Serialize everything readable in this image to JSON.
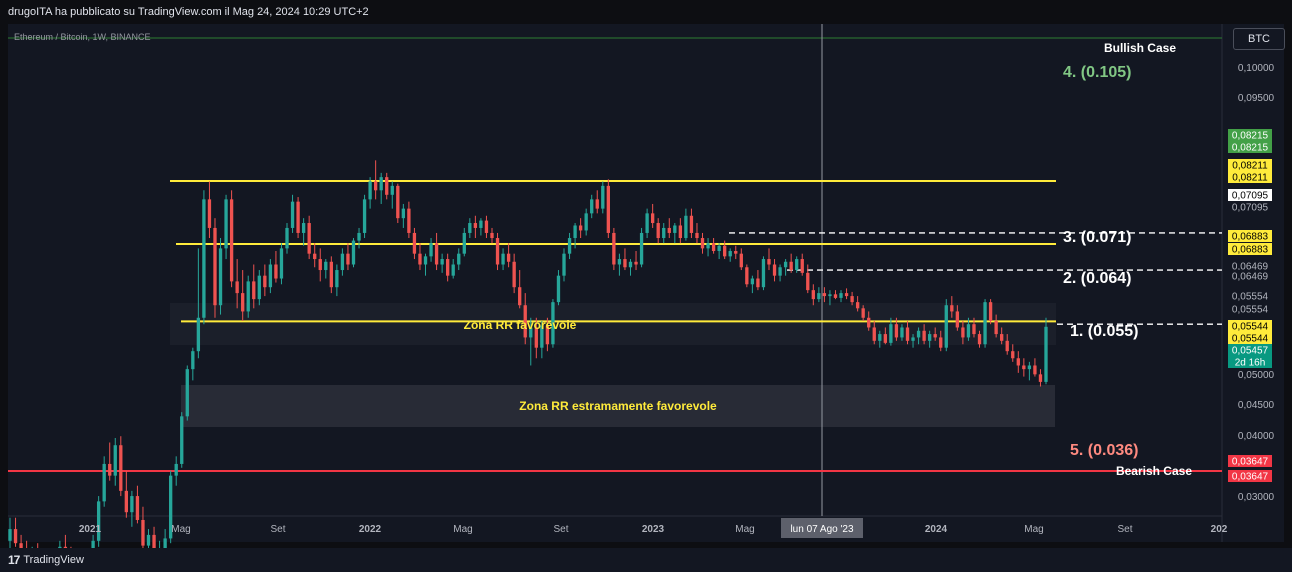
{
  "header": {
    "publisher_text": "drugoITA ha pubblicato su TradingView.com il Mag 24, 2024 10:29 UTC+2"
  },
  "footer": {
    "logo_mark": "17",
    "logo_text": "TradingView"
  },
  "toolbar": {
    "currency_button": "BTC"
  },
  "colors": {
    "background": "#131722",
    "up": "#26a69a",
    "down": "#ef5350",
    "yellow": "#ffeb3b",
    "red_line": "#f23645",
    "green_text": "#81c784",
    "salmon_text": "#ff8a80"
  },
  "chart_data": {
    "type": "candlestick",
    "symbol_label": "Ethereum / Bitcoin, 1W, BINANCE",
    "y_ticks": [
      "0,10000",
      "0,09500",
      "0,05000",
      "0,04500",
      "0,04000",
      "0,03000"
    ],
    "x_ticks": [
      {
        "label": "2021",
        "bold": true
      },
      {
        "label": "Mag",
        "bold": false
      },
      {
        "label": "Set",
        "bold": false
      },
      {
        "label": "2022",
        "bold": true
      },
      {
        "label": "Mag",
        "bold": false
      },
      {
        "label": "Set",
        "bold": false
      },
      {
        "label": "2023",
        "bold": true
      },
      {
        "label": "Mag",
        "bold": false
      },
      {
        "label": "2024",
        "bold": true
      },
      {
        "label": "Mag",
        "bold": false
      },
      {
        "label": "Set",
        "bold": false
      },
      {
        "label": "202",
        "bold": true
      }
    ],
    "crosshair_date": "lun 07 Ago '23",
    "price_labels": [
      {
        "text": "0,08215",
        "style": "green"
      },
      {
        "text": "0,08215",
        "style": "green"
      },
      {
        "text": "0,08211",
        "style": "yellow"
      },
      {
        "text": "0,08211",
        "style": "yellow"
      },
      {
        "text": "0,07095",
        "style": "white"
      },
      {
        "text": "0,07095",
        "style": "dark"
      },
      {
        "text": "0,06883",
        "style": "yellow"
      },
      {
        "text": "0,06883",
        "style": "yellow"
      },
      {
        "text": "0,06469",
        "style": "dark"
      },
      {
        "text": "0,06469",
        "style": "dark"
      },
      {
        "text": "0,05554",
        "style": "dark"
      },
      {
        "text": "0,05554",
        "style": "dark"
      },
      {
        "text": "0,05544",
        "style": "yellow"
      },
      {
        "text": "0,05544",
        "style": "yellow"
      },
      {
        "text": "0,05457",
        "style": "teal"
      },
      {
        "text": "2d 16h",
        "style": "teal"
      },
      {
        "text": "0,03647",
        "style": "red"
      },
      {
        "text": "0,03647",
        "style": "red"
      }
    ],
    "annotations": {
      "bullish_case": "Bullish Case",
      "bearish_case": "Bearish Case",
      "target_4": "4. (0.105)",
      "target_3": "3. (0.071)",
      "target_2": "2. (0.064)",
      "target_1": "1. (0.055)",
      "target_5": "5. (0.036)",
      "zone_favorable": "Zona RR favorevole",
      "zone_very_favorable": "Zona RR estramamente favorevole"
    },
    "levels": [
      0.08211,
      0.06883,
      0.05544,
      0.03647
    ],
    "targets": [
      0.071,
      0.064,
      0.055,
      0.105,
      0.036
    ],
    "candles": [
      [
        0.03,
        0.032,
        0.029,
        0.031
      ],
      [
        0.031,
        0.032,
        0.0295,
        0.0298
      ],
      [
        0.0298,
        0.0305,
        0.0288,
        0.0292
      ],
      [
        0.0292,
        0.03,
        0.0275,
        0.0278
      ],
      [
        0.0278,
        0.0295,
        0.027,
        0.029
      ],
      [
        0.029,
        0.0298,
        0.0272,
        0.0275
      ],
      [
        0.0275,
        0.029,
        0.0265,
        0.0286
      ],
      [
        0.0286,
        0.0294,
        0.027,
        0.0272
      ],
      [
        0.0272,
        0.029,
        0.0266,
        0.0288
      ],
      [
        0.0288,
        0.03,
        0.028,
        0.0295
      ],
      [
        0.0295,
        0.0305,
        0.0282,
        0.0284
      ],
      [
        0.0284,
        0.0295,
        0.0268,
        0.027
      ],
      [
        0.027,
        0.0282,
        0.0262,
        0.0276
      ],
      [
        0.0276,
        0.0284,
        0.0265,
        0.0268
      ],
      [
        0.0268,
        0.0285,
        0.0264,
        0.0282
      ],
      [
        0.0282,
        0.0305,
        0.0278,
        0.03
      ],
      [
        0.03,
        0.034,
        0.0295,
        0.0335
      ],
      [
        0.0335,
        0.038,
        0.033,
        0.0372
      ],
      [
        0.0372,
        0.0395,
        0.0355,
        0.036
      ],
      [
        0.036,
        0.04,
        0.035,
        0.0392
      ],
      [
        0.0392,
        0.0402,
        0.034,
        0.0345
      ],
      [
        0.0345,
        0.0365,
        0.032,
        0.0325
      ],
      [
        0.0325,
        0.0345,
        0.0312,
        0.034
      ],
      [
        0.034,
        0.035,
        0.0315,
        0.0318
      ],
      [
        0.0318,
        0.033,
        0.029,
        0.0296
      ],
      [
        0.0296,
        0.031,
        0.0285,
        0.0305
      ],
      [
        0.0305,
        0.0312,
        0.0288,
        0.029
      ],
      [
        0.029,
        0.03,
        0.028,
        0.0292
      ],
      [
        0.0292,
        0.031,
        0.0286,
        0.0302
      ],
      [
        0.0302,
        0.0365,
        0.0298,
        0.036
      ],
      [
        0.036,
        0.038,
        0.035,
        0.0372
      ],
      [
        0.0372,
        0.043,
        0.0368,
        0.0425
      ],
      [
        0.0425,
        0.049,
        0.042,
        0.0485
      ],
      [
        0.0485,
        0.0515,
        0.047,
        0.051
      ],
      [
        0.051,
        0.068,
        0.05,
        0.056
      ],
      [
        0.056,
        0.08,
        0.055,
        0.078
      ],
      [
        0.078,
        0.082,
        0.07,
        0.072
      ],
      [
        0.072,
        0.074,
        0.056,
        0.058
      ],
      [
        0.058,
        0.07,
        0.0565,
        0.068
      ],
      [
        0.068,
        0.079,
        0.066,
        0.078
      ],
      [
        0.078,
        0.08,
        0.061,
        0.062
      ],
      [
        0.062,
        0.066,
        0.0575,
        0.06
      ],
      [
        0.06,
        0.064,
        0.0555,
        0.057
      ],
      [
        0.057,
        0.063,
        0.056,
        0.062
      ],
      [
        0.062,
        0.065,
        0.0575,
        0.059
      ],
      [
        0.059,
        0.064,
        0.058,
        0.063
      ],
      [
        0.063,
        0.065,
        0.0595,
        0.061
      ],
      [
        0.061,
        0.066,
        0.06,
        0.065
      ],
      [
        0.065,
        0.0675,
        0.0618,
        0.0625
      ],
      [
        0.0625,
        0.069,
        0.0615,
        0.068
      ],
      [
        0.068,
        0.073,
        0.067,
        0.072
      ],
      [
        0.072,
        0.079,
        0.071,
        0.0775
      ],
      [
        0.0775,
        0.0785,
        0.07,
        0.071
      ],
      [
        0.071,
        0.074,
        0.0685,
        0.073
      ],
      [
        0.073,
        0.0745,
        0.066,
        0.067
      ],
      [
        0.067,
        0.069,
        0.0645,
        0.066
      ],
      [
        0.066,
        0.068,
        0.062,
        0.064
      ],
      [
        0.064,
        0.066,
        0.0625,
        0.0655
      ],
      [
        0.0655,
        0.0665,
        0.06,
        0.061
      ],
      [
        0.061,
        0.065,
        0.0595,
        0.064
      ],
      [
        0.064,
        0.068,
        0.063,
        0.067
      ],
      [
        0.067,
        0.069,
        0.064,
        0.065
      ],
      [
        0.065,
        0.07,
        0.0645,
        0.0695
      ],
      [
        0.0695,
        0.072,
        0.068,
        0.071
      ],
      [
        0.071,
        0.079,
        0.07,
        0.078
      ],
      [
        0.078,
        0.083,
        0.076,
        0.082
      ],
      [
        0.082,
        0.087,
        0.078,
        0.08
      ],
      [
        0.08,
        0.084,
        0.077,
        0.083
      ],
      [
        0.083,
        0.084,
        0.078,
        0.079
      ],
      [
        0.079,
        0.082,
        0.076,
        0.081
      ],
      [
        0.081,
        0.0815,
        0.073,
        0.074
      ],
      [
        0.074,
        0.077,
        0.072,
        0.076
      ],
      [
        0.076,
        0.0775,
        0.07,
        0.071
      ],
      [
        0.071,
        0.072,
        0.066,
        0.067
      ],
      [
        0.067,
        0.069,
        0.064,
        0.065
      ],
      [
        0.065,
        0.067,
        0.063,
        0.0665
      ],
      [
        0.0665,
        0.07,
        0.0655,
        0.069
      ],
      [
        0.069,
        0.071,
        0.064,
        0.065
      ],
      [
        0.065,
        0.067,
        0.0635,
        0.066
      ],
      [
        0.066,
        0.067,
        0.062,
        0.063
      ],
      [
        0.063,
        0.066,
        0.0625,
        0.065
      ],
      [
        0.065,
        0.068,
        0.064,
        0.067
      ],
      [
        0.067,
        0.072,
        0.0665,
        0.071
      ],
      [
        0.071,
        0.074,
        0.07,
        0.073
      ],
      [
        0.073,
        0.0745,
        0.07,
        0.072
      ],
      [
        0.072,
        0.074,
        0.0705,
        0.0735
      ],
      [
        0.0735,
        0.0745,
        0.07,
        0.071
      ],
      [
        0.071,
        0.072,
        0.069,
        0.07
      ],
      [
        0.07,
        0.071,
        0.064,
        0.065
      ],
      [
        0.065,
        0.068,
        0.064,
        0.067
      ],
      [
        0.067,
        0.069,
        0.0645,
        0.0655
      ],
      [
        0.0655,
        0.067,
        0.06,
        0.061
      ],
      [
        0.061,
        0.064,
        0.0575,
        0.058
      ],
      [
        0.058,
        0.06,
        0.052,
        0.053
      ],
      [
        0.053,
        0.056,
        0.049,
        0.0545
      ],
      [
        0.0545,
        0.056,
        0.05,
        0.0515
      ],
      [
        0.0515,
        0.0555,
        0.05,
        0.0548
      ],
      [
        0.0548,
        0.056,
        0.051,
        0.052
      ],
      [
        0.052,
        0.059,
        0.0515,
        0.0585
      ],
      [
        0.0585,
        0.064,
        0.058,
        0.063
      ],
      [
        0.063,
        0.068,
        0.062,
        0.067
      ],
      [
        0.067,
        0.071,
        0.066,
        0.07
      ],
      [
        0.07,
        0.073,
        0.068,
        0.0725
      ],
      [
        0.0725,
        0.074,
        0.07,
        0.0715
      ],
      [
        0.0715,
        0.076,
        0.0705,
        0.075
      ],
      [
        0.075,
        0.079,
        0.074,
        0.078
      ],
      [
        0.078,
        0.08,
        0.075,
        0.076
      ],
      [
        0.076,
        0.082,
        0.075,
        0.081
      ],
      [
        0.081,
        0.0825,
        0.07,
        0.071
      ],
      [
        0.071,
        0.072,
        0.064,
        0.065
      ],
      [
        0.065,
        0.067,
        0.063,
        0.066
      ],
      [
        0.066,
        0.068,
        0.064,
        0.0645
      ],
      [
        0.0645,
        0.066,
        0.063,
        0.0655
      ],
      [
        0.0655,
        0.0675,
        0.064,
        0.065
      ],
      [
        0.065,
        0.072,
        0.0645,
        0.071
      ],
      [
        0.071,
        0.076,
        0.07,
        0.075
      ],
      [
        0.075,
        0.077,
        0.072,
        0.073
      ],
      [
        0.073,
        0.074,
        0.069,
        0.07
      ],
      [
        0.07,
        0.073,
        0.069,
        0.072
      ],
      [
        0.072,
        0.074,
        0.07,
        0.071
      ],
      [
        0.071,
        0.073,
        0.069,
        0.0725
      ],
      [
        0.0725,
        0.074,
        0.069,
        0.07
      ],
      [
        0.07,
        0.076,
        0.0695,
        0.0745
      ],
      [
        0.0745,
        0.076,
        0.07,
        0.071
      ],
      [
        0.071,
        0.073,
        0.069,
        0.07
      ],
      [
        0.07,
        0.071,
        0.067,
        0.068
      ],
      [
        0.068,
        0.07,
        0.0665,
        0.069
      ],
      [
        0.069,
        0.07,
        0.067,
        0.0675
      ],
      [
        0.0675,
        0.069,
        0.066,
        0.0685
      ],
      [
        0.0685,
        0.0695,
        0.066,
        0.0665
      ],
      [
        0.0665,
        0.068,
        0.0655,
        0.0675
      ],
      [
        0.0675,
        0.0685,
        0.066,
        0.067
      ],
      [
        0.067,
        0.068,
        0.064,
        0.0645
      ],
      [
        0.0645,
        0.065,
        0.061,
        0.0615
      ],
      [
        0.0615,
        0.063,
        0.06,
        0.0625
      ],
      [
        0.0625,
        0.064,
        0.0605,
        0.061
      ],
      [
        0.061,
        0.0665,
        0.0605,
        0.066
      ],
      [
        0.066,
        0.068,
        0.064,
        0.065
      ],
      [
        0.065,
        0.066,
        0.062,
        0.063
      ],
      [
        0.063,
        0.065,
        0.062,
        0.0645
      ],
      [
        0.0645,
        0.066,
        0.063,
        0.0655
      ],
      [
        0.0655,
        0.067,
        0.0635,
        0.064
      ],
      [
        0.064,
        0.0665,
        0.0635,
        0.066
      ],
      [
        0.066,
        0.067,
        0.063,
        0.0635
      ],
      [
        0.0635,
        0.065,
        0.06,
        0.0605
      ],
      [
        0.0605,
        0.0615,
        0.058,
        0.059
      ],
      [
        0.059,
        0.061,
        0.0585,
        0.06
      ],
      [
        0.06,
        0.061,
        0.0585,
        0.0595
      ],
      [
        0.0595,
        0.0605,
        0.058,
        0.0598
      ],
      [
        0.0598,
        0.0605,
        0.059,
        0.0592
      ],
      [
        0.0592,
        0.0605,
        0.0585,
        0.06
      ],
      [
        0.06,
        0.0608,
        0.059,
        0.0595
      ],
      [
        0.0595,
        0.0602,
        0.058,
        0.0585
      ],
      [
        0.0585,
        0.0595,
        0.057,
        0.0575
      ],
      [
        0.0575,
        0.058,
        0.0555,
        0.056
      ],
      [
        0.056,
        0.057,
        0.054,
        0.0545
      ],
      [
        0.0545,
        0.0555,
        0.052,
        0.0525
      ],
      [
        0.0525,
        0.054,
        0.0515,
        0.0535
      ],
      [
        0.0535,
        0.0545,
        0.052,
        0.0522
      ],
      [
        0.0522,
        0.056,
        0.0518,
        0.055
      ],
      [
        0.055,
        0.056,
        0.0525,
        0.053
      ],
      [
        0.053,
        0.055,
        0.0525,
        0.0545
      ],
      [
        0.0545,
        0.0555,
        0.052,
        0.0525
      ],
      [
        0.0525,
        0.0535,
        0.0515,
        0.053
      ],
      [
        0.053,
        0.0545,
        0.052,
        0.054
      ],
      [
        0.054,
        0.055,
        0.052,
        0.0525
      ],
      [
        0.0525,
        0.054,
        0.0515,
        0.0535
      ],
      [
        0.0535,
        0.0545,
        0.0525,
        0.053
      ],
      [
        0.053,
        0.054,
        0.051,
        0.0515
      ],
      [
        0.0515,
        0.059,
        0.051,
        0.058
      ],
      [
        0.058,
        0.0595,
        0.056,
        0.057
      ],
      [
        0.057,
        0.058,
        0.054,
        0.0545
      ],
      [
        0.0545,
        0.0555,
        0.052,
        0.053
      ],
      [
        0.053,
        0.056,
        0.0525,
        0.055
      ],
      [
        0.055,
        0.056,
        0.053,
        0.0535
      ],
      [
        0.0535,
        0.054,
        0.0515,
        0.052
      ],
      [
        0.052,
        0.059,
        0.0515,
        0.0585
      ],
      [
        0.0585,
        0.059,
        0.055,
        0.0555
      ],
      [
        0.0555,
        0.0565,
        0.053,
        0.0535
      ],
      [
        0.0535,
        0.0545,
        0.052,
        0.0525
      ],
      [
        0.0525,
        0.0535,
        0.0505,
        0.051
      ],
      [
        0.051,
        0.052,
        0.0495,
        0.05
      ],
      [
        0.05,
        0.051,
        0.048,
        0.049
      ],
      [
        0.049,
        0.05,
        0.0475,
        0.0485
      ],
      [
        0.0485,
        0.0495,
        0.047,
        0.049
      ],
      [
        0.049,
        0.05,
        0.0475,
        0.0478
      ],
      [
        0.0478,
        0.0485,
        0.0462,
        0.0468
      ],
      [
        0.0468,
        0.056,
        0.0465,
        0.0546
      ]
    ]
  }
}
